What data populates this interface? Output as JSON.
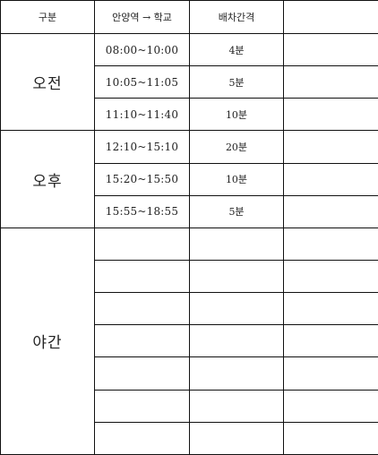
{
  "header": {
    "col0": "구분",
    "col1": "안양역 → 학교",
    "col2": "배차간격",
    "col3": ""
  },
  "periods": {
    "am": "오전",
    "pm": "오후",
    "night": "야간"
  },
  "rows": [
    {
      "time": "08:00~10:00",
      "interval": "4분",
      "extra": ""
    },
    {
      "time": "10:05~11:05",
      "interval": "5분",
      "extra": ""
    },
    {
      "time": "11:10~11:40",
      "interval": "10분",
      "extra": ""
    },
    {
      "time": "12:10~15:10",
      "interval": "20분",
      "extra": ""
    },
    {
      "time": "15:20~15:50",
      "interval": "10분",
      "extra": ""
    },
    {
      "time": "15:55~18:55",
      "interval": "5분",
      "extra": ""
    },
    {
      "time": "",
      "interval": "",
      "extra": ""
    },
    {
      "time": "",
      "interval": "",
      "extra": ""
    },
    {
      "time": "",
      "interval": "",
      "extra": ""
    },
    {
      "time": "",
      "interval": "",
      "extra": ""
    },
    {
      "time": "",
      "interval": "",
      "extra": ""
    },
    {
      "time": "",
      "interval": "",
      "extra": ""
    },
    {
      "time": "",
      "interval": "",
      "extra": ""
    }
  ]
}
